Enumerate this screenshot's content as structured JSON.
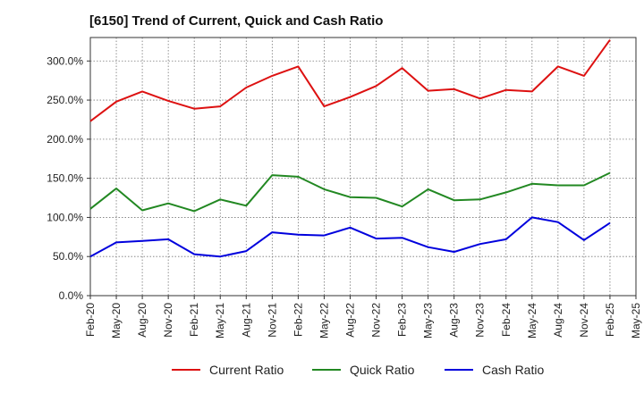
{
  "chart_data": {
    "type": "line",
    "title": "[6150]  Trend of Current, Quick and Cash Ratio",
    "xlabel": "",
    "ylabel": "",
    "ylim": [
      0,
      330
    ],
    "yticks": [
      0,
      50,
      100,
      150,
      200,
      250,
      300
    ],
    "ytick_labels": [
      "0.0%",
      "50.0%",
      "100.0%",
      "150.0%",
      "200.0%",
      "250.0%",
      "300.0%"
    ],
    "categories": [
      "Feb-20",
      "May-20",
      "Aug-20",
      "Nov-20",
      "Feb-21",
      "May-21",
      "Aug-21",
      "Nov-21",
      "Feb-22",
      "May-22",
      "Aug-22",
      "Nov-22",
      "Feb-23",
      "May-23",
      "Aug-23",
      "Nov-23",
      "Feb-24",
      "May-24",
      "Aug-24",
      "Nov-24",
      "Feb-25",
      "May-25"
    ],
    "grid": true,
    "legend_position": "bottom",
    "series": [
      {
        "name": "Current Ratio",
        "color": "#dd1111",
        "values": [
          223,
          248,
          261,
          249,
          239,
          242,
          266,
          281,
          293,
          242,
          254,
          268,
          291,
          262,
          264,
          252,
          263,
          261,
          293,
          281,
          327,
          null
        ]
      },
      {
        "name": "Quick Ratio",
        "color": "#228822",
        "values": [
          111,
          137,
          109,
          118,
          108,
          123,
          115,
          154,
          152,
          136,
          126,
          125,
          114,
          136,
          122,
          123,
          132,
          143,
          141,
          141,
          157,
          null
        ]
      },
      {
        "name": "Cash Ratio",
        "color": "#0000dd",
        "values": [
          50,
          68,
          70,
          72,
          53,
          50,
          57,
          81,
          78,
          77,
          87,
          73,
          74,
          62,
          56,
          66,
          72,
          100,
          94,
          71,
          93,
          null
        ]
      }
    ]
  }
}
